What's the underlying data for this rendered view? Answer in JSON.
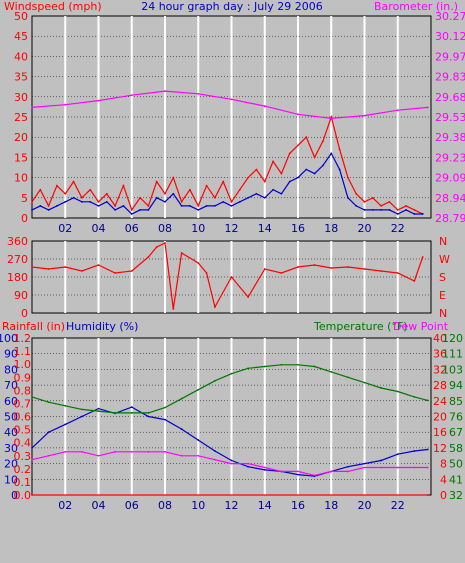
{
  "colors": {
    "red": "#ff0000",
    "blue": "#0000cc",
    "magenta": "#ff00ff",
    "green": "#007700",
    "panel_bg": "#c0c0c0",
    "grid": "#ffffff"
  },
  "chart_data": [
    {
      "type": "line",
      "title": "24 hour graph day : July 29 2006",
      "left_label": "Windspeed (mph)",
      "right_label": "Barometer (in.)",
      "x_range": [
        0,
        24
      ],
      "x_ticks": [
        "02",
        "04",
        "06",
        "08",
        "10",
        "12",
        "14",
        "16",
        "18",
        "20",
        "22"
      ],
      "y_left": {
        "min": 0,
        "max": 50,
        "ticks": [
          "0",
          "5",
          "10",
          "15",
          "20",
          "25",
          "30",
          "35",
          "40",
          "45",
          "50"
        ]
      },
      "y_right": {
        "min": 28.79,
        "max": 30.27,
        "ticks": [
          "28.79",
          "28.94",
          "29.09",
          "29.23",
          "29.38",
          "29.53",
          "29.68",
          "29.83",
          "29.97",
          "30.12",
          "30.27"
        ]
      },
      "series": [
        {
          "name": "Windspeed (mph)",
          "color": "#ff0000",
          "axis": "left",
          "x": [
            0,
            0.5,
            1,
            1.5,
            2,
            2.5,
            3,
            3.5,
            4,
            4.5,
            5,
            5.5,
            6,
            6.5,
            7,
            7.5,
            8,
            8.5,
            9,
            9.5,
            10,
            10.5,
            11,
            11.5,
            12,
            12.5,
            13,
            13.5,
            14,
            14.5,
            15,
            15.5,
            16,
            16.5,
            17,
            17.5,
            18,
            18.5,
            19,
            19.5,
            20,
            20.5,
            21,
            21.5,
            22,
            22.5,
            23,
            23.5
          ],
          "y": [
            4,
            7,
            3,
            8,
            6,
            9,
            5,
            7,
            4,
            6,
            3,
            8,
            2,
            5,
            3,
            9,
            6,
            10,
            4,
            7,
            3,
            8,
            5,
            9,
            4,
            7,
            10,
            12,
            9,
            14,
            11,
            16,
            18,
            20,
            15,
            19,
            25,
            17,
            10,
            6,
            4,
            5,
            3,
            4,
            2,
            3,
            2,
            1
          ]
        },
        {
          "name": "Windspeed avg",
          "color": "#0000cc",
          "axis": "left",
          "x": [
            0,
            0.5,
            1,
            1.5,
            2,
            2.5,
            3,
            3.5,
            4,
            4.5,
            5,
            5.5,
            6,
            6.5,
            7,
            7.5,
            8,
            8.5,
            9,
            9.5,
            10,
            10.5,
            11,
            11.5,
            12,
            12.5,
            13,
            13.5,
            14,
            14.5,
            15,
            15.5,
            16,
            16.5,
            17,
            17.5,
            18,
            18.5,
            19,
            19.5,
            20,
            20.5,
            21,
            21.5,
            22,
            22.5,
            23,
            23.5
          ],
          "y": [
            2,
            3,
            2,
            3,
            4,
            5,
            4,
            4,
            3,
            4,
            2,
            3,
            1,
            2,
            2,
            5,
            4,
            6,
            3,
            3,
            2,
            3,
            3,
            4,
            3,
            4,
            5,
            6,
            5,
            7,
            6,
            9,
            10,
            12,
            11,
            13,
            16,
            12,
            5,
            3,
            2,
            2,
            2,
            2,
            1,
            2,
            1,
            1
          ]
        },
        {
          "name": "Barometer (in.)",
          "color": "#ff00ff",
          "axis": "right",
          "x": [
            0,
            2,
            4,
            6,
            8,
            10,
            12,
            14,
            16,
            18,
            20,
            22,
            23.8
          ],
          "y": [
            29.6,
            29.62,
            29.65,
            29.69,
            29.72,
            29.7,
            29.66,
            29.61,
            29.55,
            29.52,
            29.54,
            29.58,
            29.6
          ]
        }
      ]
    },
    {
      "type": "line",
      "title": "",
      "left_label": "",
      "right_label": "",
      "x_range": [
        0,
        24
      ],
      "y_left": {
        "min": 0,
        "max": 360,
        "ticks": [
          "0",
          "90",
          "180",
          "270",
          "360"
        ]
      },
      "right_compass": [
        "N",
        "W",
        "S",
        "E",
        "N"
      ],
      "series": [
        {
          "name": "Wind direction",
          "color": "#ff0000",
          "axis": "left",
          "x": [
            0,
            1,
            2,
            3,
            4,
            5,
            6,
            7,
            7.5,
            8,
            8.5,
            9,
            10,
            10.5,
            11,
            12,
            13,
            14,
            15,
            16,
            17,
            18,
            19,
            20,
            21,
            22,
            23,
            23.5
          ],
          "y": [
            230,
            220,
            230,
            210,
            240,
            200,
            210,
            280,
            330,
            350,
            20,
            300,
            250,
            200,
            30,
            180,
            80,
            220,
            200,
            230,
            240,
            225,
            230,
            220,
            210,
            200,
            160,
            280
          ]
        }
      ]
    },
    {
      "type": "line",
      "title": "",
      "left_label_1": "Rainfall (in)",
      "left_label_2": "Humidity (%)",
      "right_label_1": "Temperature (°F)",
      "right_label_2": "Dew Point",
      "x_range": [
        0,
        24
      ],
      "x_ticks": [
        "02",
        "04",
        "06",
        "08",
        "10",
        "12",
        "14",
        "16",
        "18",
        "20",
        "22"
      ],
      "y_left_humidity": {
        "min": 0,
        "max": 100,
        "ticks": [
          "0",
          "10",
          "20",
          "30",
          "40",
          "50",
          "60",
          "70",
          "80",
          "90",
          "100"
        ]
      },
      "y_left_rain": {
        "min": 0,
        "max": 1.2,
        "ticks": [
          "0.0",
          "0.1",
          "0.2",
          "0.3",
          "0.4",
          "0.5",
          "0.6",
          "0.7",
          "0.8",
          "0.9",
          "1.0",
          "1.1",
          "1.2"
        ]
      },
      "y_right_dew": {
        "min": 0,
        "max": 40,
        "ticks": [
          "0",
          "4",
          "8",
          "12",
          "16",
          "20",
          "24",
          "28",
          "32",
          "36",
          "40"
        ]
      },
      "y_right_temp": {
        "min": 32,
        "max": 120,
        "ticks": [
          "32",
          "41",
          "50",
          "58",
          "67",
          "76",
          "85",
          "94",
          "103",
          "111",
          "120"
        ]
      },
      "series": [
        {
          "name": "Humidity (%)",
          "color": "#0000cc",
          "axis": "humidity",
          "x": [
            0,
            1,
            2,
            3,
            4,
            5,
            6,
            7,
            8,
            9,
            10,
            11,
            12,
            13,
            14,
            15,
            16,
            17,
            18,
            19,
            20,
            21,
            22,
            23,
            23.8
          ],
          "y": [
            30,
            40,
            45,
            50,
            55,
            52,
            56,
            50,
            48,
            42,
            35,
            28,
            22,
            18,
            16,
            15,
            13,
            12,
            15,
            18,
            20,
            22,
            26,
            28,
            29
          ]
        },
        {
          "name": "Temperature (°F)",
          "color": "#007700",
          "axis": "temp",
          "x": [
            0,
            1,
            2,
            3,
            4,
            5,
            6,
            7,
            8,
            9,
            10,
            11,
            12,
            13,
            14,
            15,
            16,
            17,
            18,
            19,
            20,
            21,
            22,
            23,
            23.8
          ],
          "y": [
            87,
            84,
            82,
            80,
            79,
            78,
            78,
            78,
            81,
            86,
            91,
            96,
            100,
            103,
            104,
            105,
            105,
            104,
            101,
            98,
            95,
            92,
            90,
            87,
            85
          ]
        },
        {
          "name": "Dew Point",
          "color": "#ff00ff",
          "axis": "dew",
          "x": [
            0,
            1,
            2,
            3,
            4,
            5,
            6,
            7,
            8,
            9,
            10,
            11,
            12,
            13,
            14,
            15,
            16,
            17,
            18,
            19,
            20,
            21,
            22,
            23,
            23.8
          ],
          "y": [
            9,
            10,
            11,
            11,
            10,
            11,
            11,
            11,
            11,
            10,
            10,
            9,
            8,
            8,
            7,
            6,
            6,
            5,
            6,
            6,
            7,
            7,
            7,
            7,
            7
          ]
        },
        {
          "name": "Rainfall (in)",
          "color": "#ff0000",
          "axis": "rain",
          "x": [
            0,
            23.8
          ],
          "y": [
            0,
            0
          ]
        }
      ]
    }
  ]
}
